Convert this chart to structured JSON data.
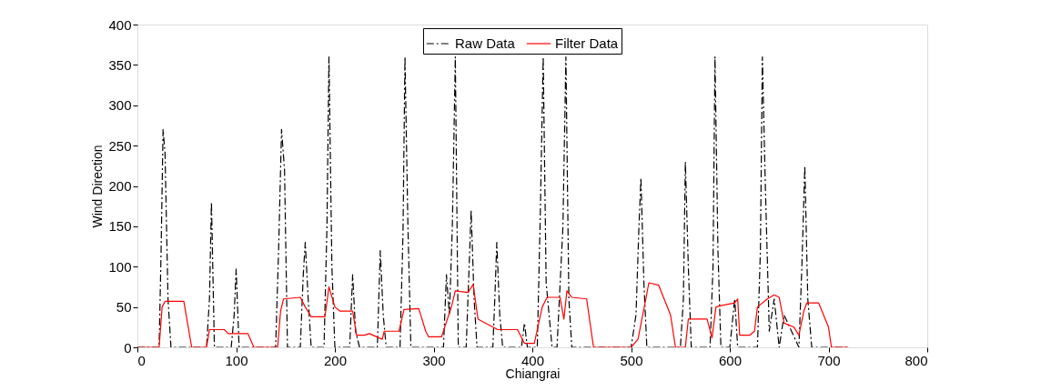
{
  "chart_data": {
    "type": "line",
    "xlabel": "Chiangrai",
    "ylabel": "Wind Direction",
    "xlim": [
      0,
      800
    ],
    "xticks": [
      0,
      100,
      200,
      300,
      400,
      500,
      600,
      700,
      800
    ],
    "ylim": [
      0,
      400
    ],
    "yticks": [
      0,
      50,
      100,
      150,
      200,
      250,
      300,
      350,
      400
    ],
    "grid": false,
    "legend": "top",
    "marker": "none",
    "series": [
      {
        "name": "Raw Data",
        "color": "#000000",
        "line_style": "dashed",
        "x": [
          0,
          22,
          24,
          26,
          28,
          31,
          34,
          70,
          73,
          75,
          78,
          95,
          98,
          100,
          103,
          140,
          143,
          146,
          149,
          152,
          165,
          168,
          170,
          173,
          176,
          189,
          192,
          194,
          197,
          200,
          215,
          218,
          221,
          225,
          243,
          246,
          249,
          252,
          266,
          269,
          271,
          274,
          277,
          300,
          310,
          313,
          316,
          319,
          322,
          325,
          333,
          336,
          338,
          341,
          344,
          360,
          362,
          364,
          367,
          370,
          389,
          392,
          395,
          405,
          408,
          411,
          414,
          420,
          425,
          431,
          434,
          437,
          440,
          500,
          505,
          508,
          510,
          513,
          516,
          550,
          553,
          555,
          558,
          561,
          580,
          583,
          585,
          588,
          591,
          600,
          605,
          608,
          628,
          631,
          633,
          636,
          640,
          645,
          650,
          655,
          670,
          673,
          676,
          679,
          683,
          720
        ],
        "values": [
          0,
          0,
          120,
          270,
          240,
          60,
          0,
          0,
          60,
          180,
          0,
          0,
          40,
          97,
          0,
          0,
          120,
          270,
          220,
          0,
          0,
          90,
          130,
          60,
          0,
          0,
          150,
          360,
          100,
          0,
          0,
          90,
          20,
          0,
          0,
          120,
          40,
          0,
          0,
          140,
          360,
          150,
          0,
          0,
          0,
          90,
          40,
          150,
          360,
          0,
          0,
          100,
          170,
          60,
          0,
          0,
          60,
          130,
          40,
          0,
          0,
          30,
          0,
          0,
          160,
          360,
          80,
          0,
          0,
          150,
          360,
          60,
          0,
          0,
          40,
          150,
          210,
          80,
          0,
          0,
          60,
          230,
          100,
          0,
          0,
          100,
          360,
          120,
          0,
          0,
          60,
          0,
          0,
          120,
          360,
          200,
          20,
          60,
          0,
          40,
          0,
          100,
          225,
          60,
          0,
          0
        ]
      },
      {
        "name": "Filter Data",
        "color": "#ff0000",
        "line_style": "solid",
        "x": [
          0,
          22,
          25,
          28,
          47,
          55,
          70,
          73,
          88,
          92,
          112,
          118,
          142,
          145,
          148,
          165,
          170,
          176,
          190,
          194,
          200,
          205,
          218,
          222,
          230,
          235,
          248,
          250,
          265,
          270,
          285,
          292,
          295,
          308,
          318,
          322,
          335,
          340,
          345,
          365,
          385,
          392,
          402,
          410,
          415,
          428,
          432,
          435,
          440,
          455,
          462,
          500,
          507,
          515,
          518,
          528,
          540,
          545,
          555,
          558,
          577,
          582,
          586,
          592,
          605,
          608,
          610,
          620,
          625,
          628,
          638,
          645,
          650,
          655,
          665,
          670,
          675,
          678,
          690,
          700,
          703,
          720
        ],
        "values": [
          0,
          0,
          50,
          57,
          57,
          0,
          0,
          22,
          22,
          17,
          17,
          0,
          0,
          45,
          60,
          62,
          50,
          38,
          38,
          75,
          50,
          45,
          45,
          15,
          15,
          17,
          10,
          20,
          20,
          47,
          48,
          20,
          13,
          13,
          50,
          70,
          68,
          78,
          35,
          22,
          22,
          5,
          5,
          50,
          62,
          62,
          35,
          70,
          62,
          60,
          0,
          0,
          10,
          60,
          80,
          77,
          40,
          0,
          0,
          35,
          35,
          12,
          50,
          52,
          55,
          60,
          15,
          15,
          20,
          50,
          60,
          65,
          62,
          30,
          25,
          15,
          45,
          55,
          55,
          25,
          0,
          0
        ]
      }
    ]
  }
}
